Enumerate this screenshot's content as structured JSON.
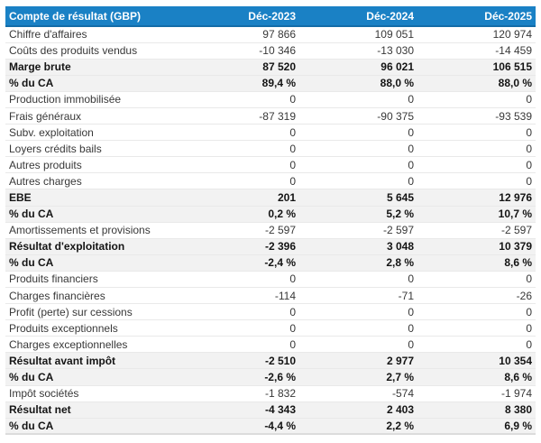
{
  "chart_data": {
    "type": "table",
    "title": "Compte de résultat (GBP)",
    "columns": [
      "Déc-2023",
      "Déc-2024",
      "Déc-2025"
    ],
    "rows": [
      {
        "label": "Chiffre d'affaires",
        "values": [
          "97 866",
          "109 051",
          "120 974"
        ],
        "emphasis": false
      },
      {
        "label": "Coûts des produits vendus",
        "values": [
          "-10 346",
          "-13 030",
          "-14 459"
        ],
        "emphasis": false
      },
      {
        "label": "Marge brute",
        "values": [
          "87 520",
          "96 021",
          "106 515"
        ],
        "emphasis": true
      },
      {
        "label": "% du CA",
        "values": [
          "89,4 %",
          "88,0 %",
          "88,0 %"
        ],
        "emphasis": true
      },
      {
        "label": "Production immobilisée",
        "values": [
          "0",
          "0",
          "0"
        ],
        "emphasis": false
      },
      {
        "label": "Frais généraux",
        "values": [
          "-87 319",
          "-90 375",
          "-93 539"
        ],
        "emphasis": false
      },
      {
        "label": "Subv. exploitation",
        "values": [
          "0",
          "0",
          "0"
        ],
        "emphasis": false
      },
      {
        "label": "Loyers crédits bails",
        "values": [
          "0",
          "0",
          "0"
        ],
        "emphasis": false
      },
      {
        "label": "Autres produits",
        "values": [
          "0",
          "0",
          "0"
        ],
        "emphasis": false
      },
      {
        "label": "Autres charges",
        "values": [
          "0",
          "0",
          "0"
        ],
        "emphasis": false
      },
      {
        "label": "EBE",
        "values": [
          "201",
          "5 645",
          "12 976"
        ],
        "emphasis": true
      },
      {
        "label": "% du CA",
        "values": [
          "0,2 %",
          "5,2 %",
          "10,7 %"
        ],
        "emphasis": true
      },
      {
        "label": "Amortissements et provisions",
        "values": [
          "-2 597",
          "-2 597",
          "-2 597"
        ],
        "emphasis": false
      },
      {
        "label": "Résultat d'exploitation",
        "values": [
          "-2 396",
          "3 048",
          "10 379"
        ],
        "emphasis": true
      },
      {
        "label": "% du CA",
        "values": [
          "-2,4 %",
          "2,8 %",
          "8,6 %"
        ],
        "emphasis": true
      },
      {
        "label": "Produits financiers",
        "values": [
          "0",
          "0",
          "0"
        ],
        "emphasis": false
      },
      {
        "label": "Charges financières",
        "values": [
          "-114",
          "-71",
          "-26"
        ],
        "emphasis": false
      },
      {
        "label": "Profit (perte) sur cessions",
        "values": [
          "0",
          "0",
          "0"
        ],
        "emphasis": false
      },
      {
        "label": "Produits exceptionnels",
        "values": [
          "0",
          "0",
          "0"
        ],
        "emphasis": false
      },
      {
        "label": "Charges exceptionnelles",
        "values": [
          "0",
          "0",
          "0"
        ],
        "emphasis": false
      },
      {
        "label": "Résultat avant impôt",
        "values": [
          "-2 510",
          "2 977",
          "10 354"
        ],
        "emphasis": true
      },
      {
        "label": "% du CA",
        "values": [
          "-2,6 %",
          "2,7 %",
          "8,6 %"
        ],
        "emphasis": true
      },
      {
        "label": "Impôt sociétés",
        "values": [
          "-1 832",
          "-574",
          "-1 974"
        ],
        "emphasis": false
      },
      {
        "label": "Résultat net",
        "values": [
          "-4 343",
          "2 403",
          "8 380"
        ],
        "emphasis": true
      },
      {
        "label": "% du CA",
        "values": [
          "-4,4 %",
          "2,2 %",
          "6,9 %"
        ],
        "emphasis": true
      }
    ]
  },
  "colors": {
    "header_bg": "#1a81c5",
    "header_bottom_border": "#136ca8",
    "header_text": "#ffffff",
    "summary_row_bg": "#f2f2f2",
    "row_divider": "#e9e9e9",
    "table_bottom_border": "#dcdcdc",
    "body_text": "#383838",
    "emphasis_text": "#141414"
  }
}
